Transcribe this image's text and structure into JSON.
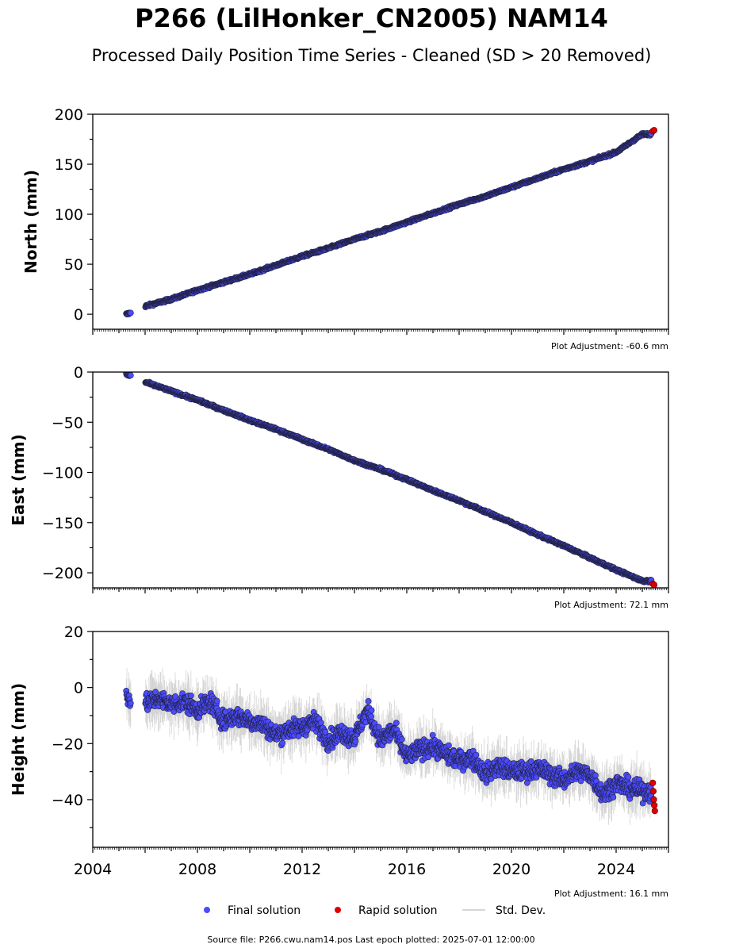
{
  "title": "P266 (LilHonker_CN2005) NAM14",
  "subtitle": "Processed Daily Position Time Series - Cleaned (SD > 20 Removed)",
  "legend": {
    "final": "Final solution",
    "rapid": "Rapid solution",
    "std": "Std. Dev."
  },
  "footer": "Source file: P266.cwu.nam14.pos  Last epoch plotted: 2025-07-01 12:00:00",
  "colors": {
    "final": "#4B4BFF",
    "rapid": "#E00000",
    "std": "#999999",
    "edge": "#222244"
  },
  "chart_data": [
    {
      "type": "scatter",
      "ylabel": "North (mm)",
      "ylim": [
        -15,
        200
      ],
      "yticks": [
        0,
        50,
        100,
        150,
        200
      ],
      "xlim": [
        2004,
        2026
      ],
      "grid": false,
      "adjustment": "Plot Adjustment: -60.6 mm",
      "series": [
        {
          "name": "Final solution",
          "x": [
            2005.3,
            2005.4,
            2006.0,
            2007.0,
            2008.0,
            2009.0,
            2010.0,
            2011.0,
            2012.0,
            2013.0,
            2014.0,
            2015.0,
            2016.0,
            2017.0,
            2018.0,
            2019.0,
            2020.0,
            2021.0,
            2022.0,
            2023.0,
            2024.0,
            2025.0
          ],
          "y": [
            0,
            1,
            8,
            15,
            24,
            32,
            40,
            49,
            58,
            66,
            75,
            83,
            92,
            101,
            110,
            118,
            127,
            136,
            145,
            153,
            162,
            180
          ]
        },
        {
          "name": "Rapid solution",
          "x": [
            2025.4,
            2025.45
          ],
          "y": [
            183,
            184
          ]
        }
      ]
    },
    {
      "type": "scatter",
      "ylabel": "East (mm)",
      "ylim": [
        -215,
        0
      ],
      "yticks": [
        0,
        -50,
        -100,
        -150,
        -200
      ],
      "xlim": [
        2004,
        2026
      ],
      "grid": false,
      "adjustment": "Plot Adjustment: 72.1 mm",
      "series": [
        {
          "name": "Final solution",
          "x": [
            2005.3,
            2005.4,
            2006.0,
            2007.0,
            2008.0,
            2009.0,
            2010.0,
            2011.0,
            2012.0,
            2013.0,
            2014.0,
            2015.0,
            2016.0,
            2017.0,
            2018.0,
            2019.0,
            2020.0,
            2021.0,
            2022.0,
            2023.0,
            2024.0,
            2025.0
          ],
          "y": [
            -2,
            -3,
            -10,
            -19,
            -28,
            -38,
            -48,
            -57,
            -67,
            -77,
            -88,
            -97,
            -107,
            -118,
            -128,
            -139,
            -150,
            -162,
            -173,
            -185,
            -197,
            -208
          ]
        },
        {
          "name": "Rapid solution",
          "x": [
            2025.4,
            2025.45
          ],
          "y": [
            -211,
            -212
          ]
        }
      ]
    },
    {
      "type": "scatter",
      "ylabel": "Height (mm)",
      "ylim": [
        -57,
        20
      ],
      "yticks": [
        20,
        0,
        -20,
        -40
      ],
      "xlim": [
        2004,
        2026
      ],
      "xticks": [
        2004,
        2008,
        2012,
        2016,
        2020,
        2024
      ],
      "grid": false,
      "adjustment": "Plot Adjustment: 16.1 mm",
      "series": [
        {
          "name": "Final solution",
          "x": [
            2005.3,
            2005.4,
            2006.0,
            2006.5,
            2007.0,
            2007.5,
            2008.0,
            2008.5,
            2009.0,
            2009.5,
            2010.0,
            2010.5,
            2011.0,
            2011.5,
            2012.0,
            2012.5,
            2013.0,
            2013.5,
            2014.0,
            2014.5,
            2015.0,
            2015.5,
            2016.0,
            2016.5,
            2017.0,
            2017.5,
            2018.0,
            2018.5,
            2019.0,
            2019.5,
            2020.0,
            2020.5,
            2021.0,
            2021.5,
            2022.0,
            2022.5,
            2023.0,
            2023.5,
            2024.0,
            2024.5,
            2025.0
          ],
          "y": [
            -2,
            -4,
            -6,
            -4,
            -6,
            -5,
            -8,
            -5,
            -12,
            -10,
            -12,
            -13,
            -17,
            -15,
            -14,
            -12,
            -19,
            -16,
            -18,
            -8,
            -19,
            -15,
            -25,
            -22,
            -21,
            -24,
            -26,
            -25,
            -31,
            -28,
            -30,
            -30,
            -29,
            -31,
            -33,
            -30,
            -31,
            -38,
            -34,
            -36,
            -37
          ]
        },
        {
          "name": "Rapid solution",
          "x": [
            2025.4,
            2025.42,
            2025.44,
            2025.46,
            2025.48
          ],
          "y": [
            -34,
            -37,
            -40,
            -42,
            -44
          ]
        }
      ]
    }
  ]
}
